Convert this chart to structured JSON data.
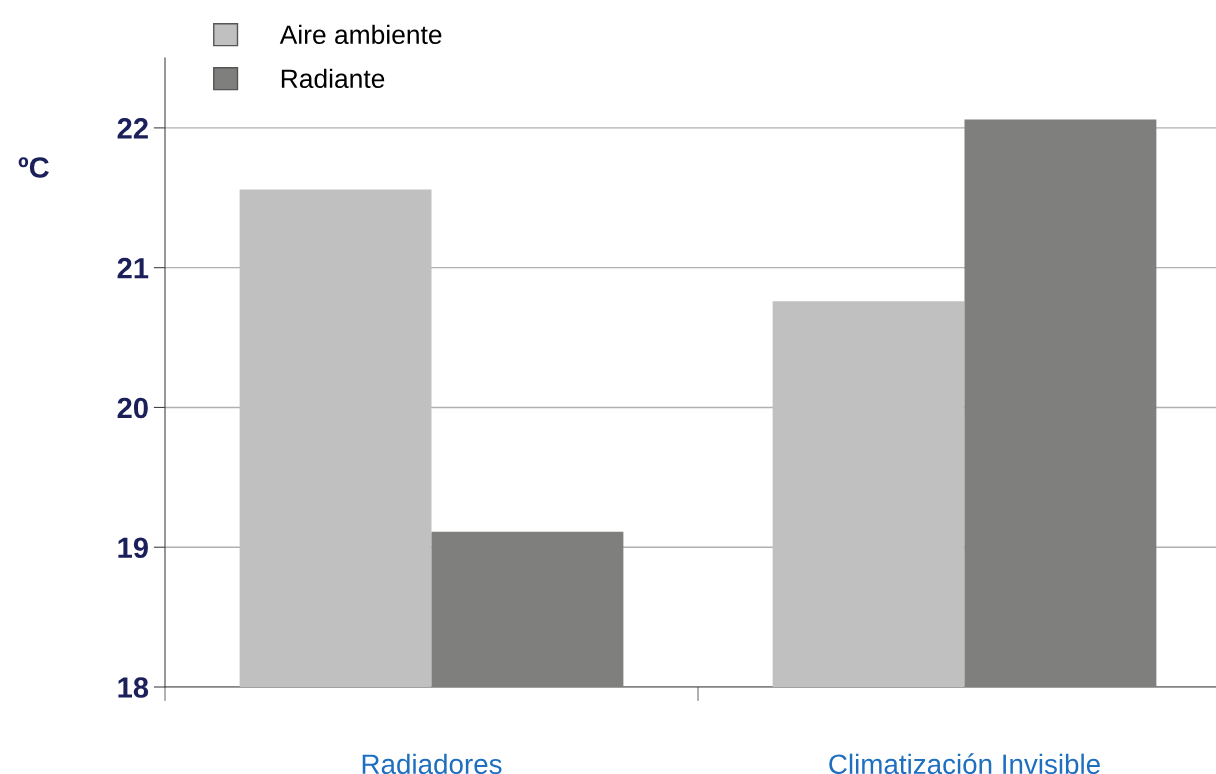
{
  "chart_data": {
    "type": "bar",
    "ylabel": "ºC",
    "categories": [
      "Radiadores",
      "Climatización Invisible"
    ],
    "series": [
      {
        "name": "Aire ambiente",
        "color": "#c0c0c0",
        "values": [
          21.56,
          20.76
        ]
      },
      {
        "name": "Radiante",
        "color": "#7f807d",
        "values": [
          19.11,
          22.06
        ]
      }
    ],
    "ylim": [
      18,
      22.5
    ],
    "yticks": [
      18,
      19,
      20,
      21,
      22
    ],
    "grid": "y",
    "legend": "top left"
  }
}
